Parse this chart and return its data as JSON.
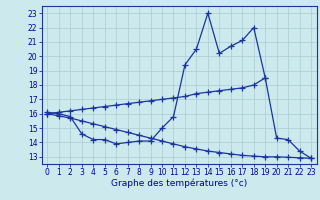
{
  "xlabel": "Graphe des températures (°c)",
  "hours": [
    0,
    1,
    2,
    3,
    4,
    5,
    6,
    7,
    8,
    9,
    10,
    11,
    12,
    13,
    14,
    15,
    16,
    17,
    18,
    19,
    20,
    21,
    22,
    23
  ],
  "y_jagged": [
    16.1,
    16.0,
    15.8,
    14.6,
    14.2,
    14.2,
    13.9,
    14.0,
    14.1,
    14.1,
    15.0,
    15.8,
    19.4,
    20.5,
    23.0,
    20.2,
    20.7,
    21.1,
    22.0,
    18.5,
    14.3,
    14.2,
    13.4,
    12.9
  ],
  "y_rising": [
    16.0,
    16.1,
    16.2,
    16.3,
    16.4,
    16.5,
    16.6,
    16.7,
    16.8,
    16.9,
    17.0,
    17.1,
    17.2,
    17.4,
    17.5,
    17.6,
    17.7,
    17.8,
    18.0,
    18.5,
    null,
    null,
    null,
    null
  ],
  "y_falling": [
    16.0,
    15.85,
    15.7,
    15.5,
    15.3,
    15.1,
    14.9,
    14.7,
    14.5,
    14.3,
    14.1,
    13.9,
    13.7,
    13.55,
    13.4,
    13.3,
    13.2,
    13.1,
    13.05,
    13.0,
    13.0,
    12.97,
    12.93,
    12.9
  ],
  "ylim": [
    12.5,
    23.5
  ],
  "xlim": [
    -0.5,
    23.5
  ],
  "yticks": [
    13,
    14,
    15,
    16,
    17,
    18,
    19,
    20,
    21,
    22,
    23
  ],
  "xticks": [
    0,
    1,
    2,
    3,
    4,
    5,
    6,
    7,
    8,
    9,
    10,
    11,
    12,
    13,
    14,
    15,
    16,
    17,
    18,
    19,
    20,
    21,
    22,
    23
  ],
  "bg_color": "#cce9ee",
  "line_color": "#1a35a0",
  "grid_color": "#aaccd0",
  "text_color": "#0000aa",
  "line_width": 0.9,
  "marker": "+",
  "marker_size": 4,
  "marker_edge_width": 0.9,
  "tick_fontsize": 5.5,
  "xlabel_fontsize": 6.5
}
